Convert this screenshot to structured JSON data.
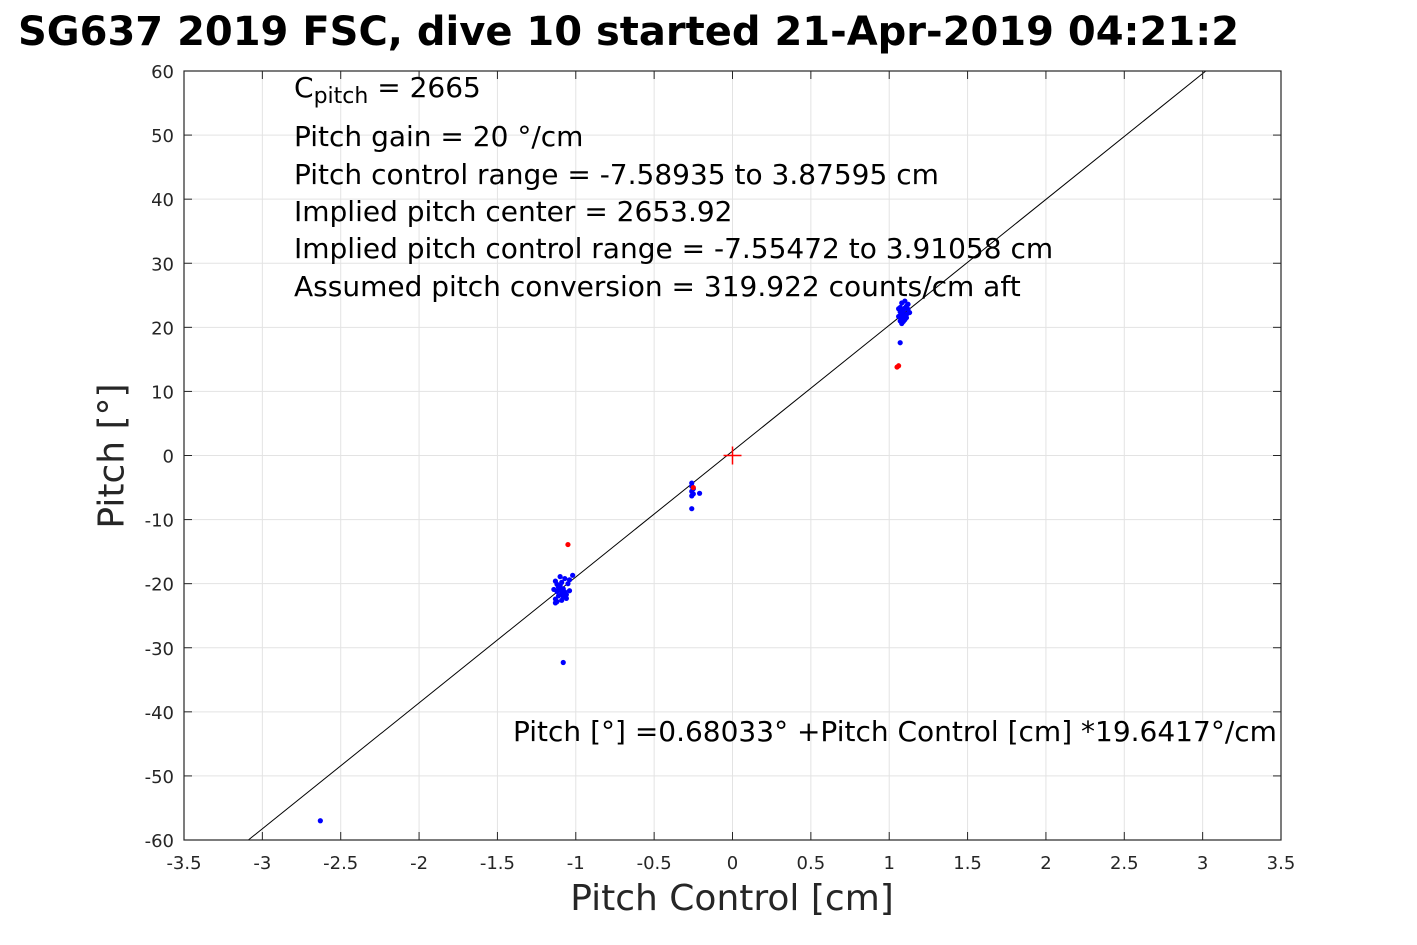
{
  "header": {
    "title": "SG637 2019 FSC, dive 10 started 21-Apr-2019 04:21:2"
  },
  "annotations": {
    "c_pitch_symbol": "C",
    "c_pitch_subscript": "pitch",
    "c_pitch_value": " = 2665",
    "pitch_gain": "Pitch gain = 20 °/cm",
    "pitch_control_range": "Pitch control range = -7.58935 to 3.87595 cm",
    "implied_pitch_center": "Implied pitch center = 2653.92",
    "implied_pitch_control_range": "Implied pitch control range = -7.55472 to 3.91058 cm",
    "assumed_pitch_conversion": "Assumed pitch conversion = 319.922 counts/cm aft",
    "fit_equation": "Pitch [°] =0.68033° +Pitch Control [cm] *19.6417°/cm"
  },
  "chart_data": {
    "type": "scatter",
    "xlabel": "Pitch Control [cm]",
    "ylabel": "Pitch [°]",
    "xlim": [
      -3.5,
      3.5
    ],
    "ylim": [
      -60,
      60
    ],
    "xticks": [
      "-3.5",
      "-3",
      "-2.5",
      "-2",
      "-1.5",
      "-1",
      "-0.5",
      "0",
      "0.5",
      "1",
      "1.5",
      "2",
      "2.5",
      "3",
      "3.5"
    ],
    "yticks": [
      "60",
      "50",
      "40",
      "30",
      "20",
      "10",
      "0",
      "-10",
      "-20",
      "-30",
      "-40",
      "-50",
      "-60"
    ],
    "grid": true,
    "fit_line": {
      "intercept": 0.68033,
      "slope": 19.6417,
      "color": "#000000"
    },
    "center_marker": {
      "x": 0,
      "y": 0,
      "symbol": "+",
      "color": "#ff0000"
    },
    "colors": {
      "good": "#0000ff",
      "flagged": "#ff0000"
    },
    "series": [
      {
        "color": "#0000ff",
        "points": [
          [
            -2.63,
            -57.0
          ],
          [
            -1.08,
            -32.3
          ],
          [
            -1.13,
            -19.6
          ],
          [
            -1.12,
            -20.1
          ],
          [
            -1.11,
            -20.6
          ],
          [
            -1.1,
            -21.0
          ],
          [
            -1.09,
            -21.5
          ],
          [
            -1.08,
            -22.0
          ],
          [
            -1.13,
            -22.4
          ],
          [
            -1.12,
            -22.8
          ],
          [
            -1.1,
            -20.3
          ],
          [
            -1.09,
            -19.8
          ],
          [
            -1.08,
            -20.8
          ],
          [
            -1.07,
            -21.3
          ],
          [
            -1.06,
            -21.7
          ],
          [
            -1.11,
            -21.9
          ],
          [
            -1.12,
            -21.2
          ],
          [
            -1.05,
            -20.0
          ],
          [
            -1.04,
            -19.4
          ],
          [
            -1.06,
            -22.3
          ],
          [
            -1.14,
            -20.9
          ],
          [
            -1.13,
            -23.0
          ],
          [
            -1.09,
            -22.6
          ],
          [
            -1.07,
            -19.2
          ],
          [
            -1.1,
            -18.9
          ],
          [
            -1.02,
            -18.7
          ],
          [
            -1.04,
            -21.1
          ],
          [
            -1.11,
            -20.3
          ],
          [
            -1.08,
            -21.7
          ],
          [
            -0.26,
            -4.3
          ],
          [
            -0.26,
            -4.8
          ],
          [
            -0.25,
            -5.2
          ],
          [
            -0.26,
            -5.6
          ],
          [
            -0.25,
            -6.0
          ],
          [
            -0.26,
            -6.3
          ],
          [
            -0.21,
            -5.9
          ],
          [
            -0.26,
            -8.3
          ],
          [
            1.08,
            20.6
          ],
          [
            1.07,
            21.0
          ],
          [
            1.08,
            21.4
          ],
          [
            1.09,
            21.8
          ],
          [
            1.08,
            22.2
          ],
          [
            1.09,
            22.6
          ],
          [
            1.1,
            23.0
          ],
          [
            1.11,
            23.3
          ],
          [
            1.12,
            23.6
          ],
          [
            1.07,
            22.4
          ],
          [
            1.06,
            21.7
          ],
          [
            1.1,
            21.2
          ],
          [
            1.11,
            22.0
          ],
          [
            1.12,
            22.8
          ],
          [
            1.09,
            20.9
          ],
          [
            1.07,
            23.1
          ],
          [
            1.1,
            24.1
          ],
          [
            1.13,
            22.3
          ],
          [
            1.06,
            22.9
          ],
          [
            1.11,
            21.5
          ],
          [
            1.08,
            23.8
          ],
          [
            1.07,
            17.6
          ]
        ]
      },
      {
        "color": "#ff0000",
        "points": [
          [
            -1.05,
            -13.9
          ],
          [
            -0.25,
            -5.0
          ],
          [
            1.05,
            13.8
          ],
          [
            1.06,
            14.0
          ]
        ]
      }
    ]
  }
}
